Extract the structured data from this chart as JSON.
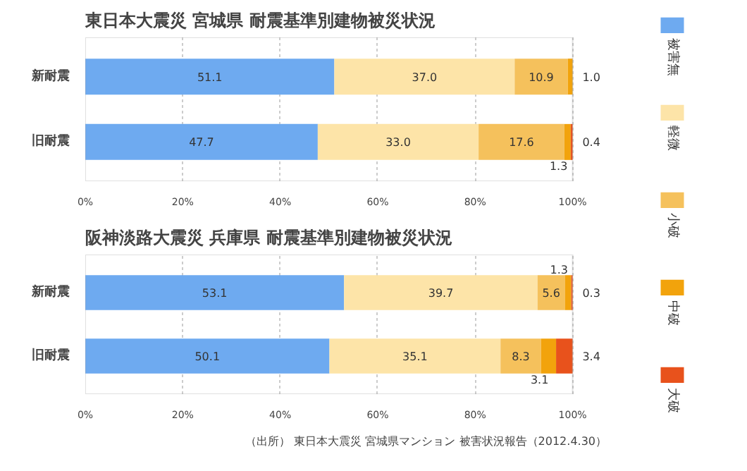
{
  "chart_data": [
    {
      "type": "bar",
      "orientation": "horizontal",
      "stacked": true,
      "title": "東日本大震災 宮城県 耐震基準別建物被災状況",
      "categories": [
        "新耐震",
        "旧耐震"
      ],
      "series": [
        {
          "name": "被害無",
          "color": "#6eaaf0",
          "values": [
            51.1,
            47.7
          ],
          "value_labels": [
            "51.1",
            "47.7"
          ]
        },
        {
          "name": "軽微",
          "color": "#fde4a8",
          "values": [
            37.0,
            33.0
          ],
          "value_labels": [
            "37.0",
            "33.0"
          ]
        },
        {
          "name": "小破",
          "color": "#f5c15c",
          "values": [
            10.9,
            17.6
          ],
          "value_labels": [
            "10.9",
            "17.6"
          ]
        },
        {
          "name": "中破",
          "color": "#f2a30c",
          "values": [
            1.0,
            1.3
          ],
          "value_labels": [
            "1.0",
            "1.3"
          ]
        },
        {
          "name": "大破",
          "color": "#e8521c",
          "values": [
            null,
            0.4
          ],
          "value_labels": [
            null,
            "0.4"
          ]
        }
      ],
      "xlim": [
        0,
        100
      ],
      "xticks": [
        {
          "value": 0,
          "label": "0%"
        },
        {
          "value": 20,
          "label": "20%"
        },
        {
          "value": 40,
          "label": "40%"
        },
        {
          "value": 60,
          "label": "60%"
        },
        {
          "value": 80,
          "label": "80%"
        },
        {
          "value": 100,
          "label": "100%"
        }
      ],
      "grid": "x",
      "legend": "right"
    },
    {
      "type": "bar",
      "orientation": "horizontal",
      "stacked": true,
      "title": "阪神淡路大震災 兵庫県 耐震基準別建物被災状況",
      "categories": [
        "新耐震",
        "旧耐震"
      ],
      "series": [
        {
          "name": "被害無",
          "color": "#6eaaf0",
          "values": [
            53.1,
            50.1
          ],
          "value_labels": [
            "53.1",
            "50.1"
          ]
        },
        {
          "name": "軽微",
          "color": "#fde4a8",
          "values": [
            39.7,
            35.1
          ],
          "value_labels": [
            "39.7",
            "35.1"
          ]
        },
        {
          "name": "小破",
          "color": "#f5c15c",
          "values": [
            5.6,
            8.3
          ],
          "value_labels": [
            "5.6",
            "8.3"
          ]
        },
        {
          "name": "中破",
          "color": "#f2a30c",
          "values": [
            1.3,
            3.1
          ],
          "value_labels": [
            "1.3",
            "3.1"
          ]
        },
        {
          "name": "大破",
          "color": "#e8521c",
          "values": [
            0.3,
            3.4
          ],
          "value_labels": [
            "0.3",
            "3.4"
          ]
        }
      ],
      "xlim": [
        0,
        100
      ],
      "xticks": [
        {
          "value": 0,
          "label": "0%"
        },
        {
          "value": 20,
          "label": "20%"
        },
        {
          "value": 40,
          "label": "40%"
        },
        {
          "value": 60,
          "label": "60%"
        },
        {
          "value": 80,
          "label": "80%"
        },
        {
          "value": 100,
          "label": "100%"
        }
      ],
      "grid": "x",
      "legend": "right",
      "annotations": [
        "（出所） 東日本大震災 宮城県マンション 被害状況報告（2012.4.30）"
      ]
    }
  ]
}
